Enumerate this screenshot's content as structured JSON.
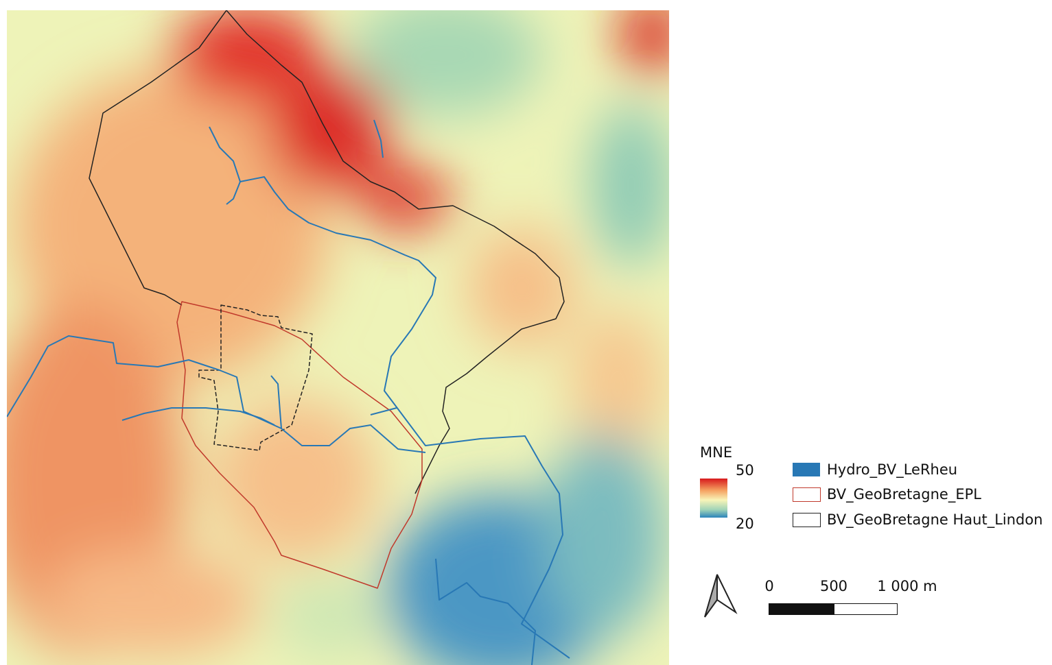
{
  "legend": {
    "ramp": {
      "title": "MNE",
      "max": 50,
      "min": 20
    },
    "items": [
      "Hydro_BV_LeRheu",
      "BV_GeoBretagne_EPL",
      "BV_GeoBretagne Haut_Lindon"
    ]
  },
  "scale_bar": {
    "labels": [
      "0",
      "500",
      "1 000 m"
    ]
  }
}
